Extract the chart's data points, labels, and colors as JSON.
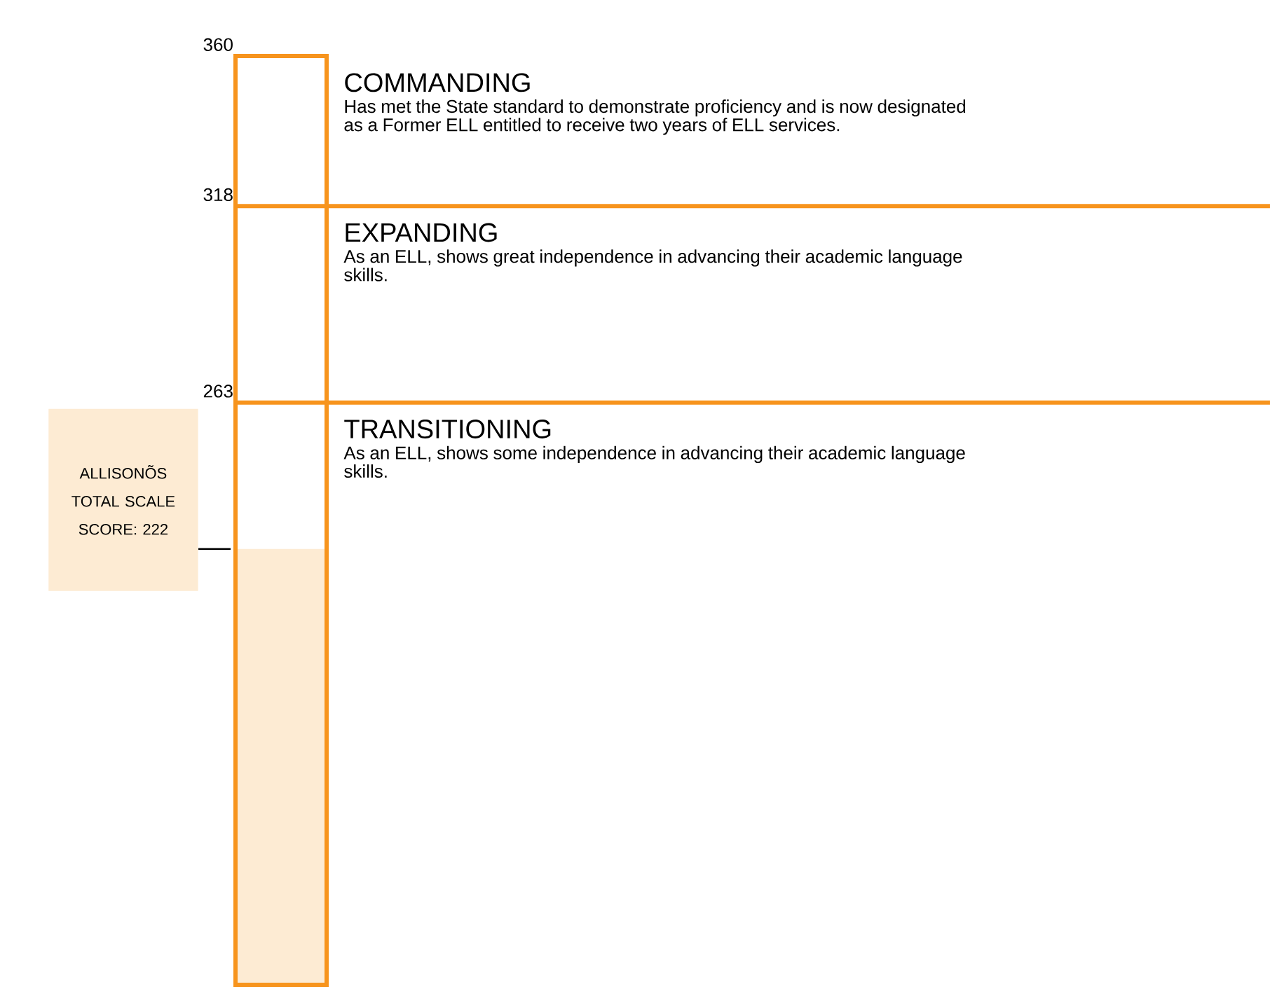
{
  "chart_data": {
    "type": "bar",
    "categories": [
      null
    ],
    "values": [
      222
    ],
    "color": "#fdebd3",
    "ylim": [
      100,
      360
    ],
    "yticks": [
      263,
      318,
      360
    ],
    "ref_lines": [
      {
        "axis": "y",
        "value": 318,
        "label": "EXPANDING",
        "color": "#f7941d"
      },
      {
        "axis": "y",
        "value": 263,
        "label": "TRANSITIONING",
        "color": "#f7941d"
      }
    ],
    "annotations": [
      "ALLISONÕS TOTAL SCALE SCORE: 222",
      "COMMANDING",
      "Has met the State standard to demonstrate proficiency and is now designated as a Former ELL entitled to receive two years of ELL services.",
      "As an ELL, shows great independence in advancing their academic language skills.",
      "As an ELL, shows some independence in advancing their academic language skills."
    ]
  }
}
